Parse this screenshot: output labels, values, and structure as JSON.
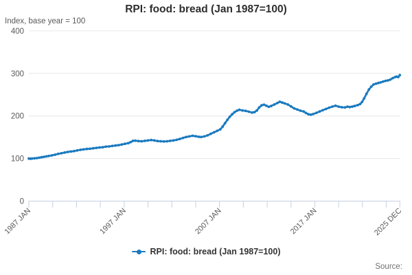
{
  "header": {
    "title": "RPI: food: bread (Jan 1987=100)"
  },
  "source_label": "Source:",
  "colors": {
    "line": "#1a7abf",
    "grid": "#e6e6e6",
    "axis": "#c6d0e2",
    "tick_label": "#595959",
    "title": "#2e2e2e",
    "subtitle": "#595959",
    "source": "#6f6f6f"
  },
  "chart_data": {
    "type": "line",
    "title": "RPI: food: bread (Jan 1987=100)",
    "ylabel": "Index, base year = 100",
    "xlabel": "",
    "ylim": [
      0,
      400
    ],
    "xlim": [
      1987.0,
      2026.0
    ],
    "grid": true,
    "legend_position": "bottom",
    "y_ticks": [
      0,
      100,
      200,
      300,
      400
    ],
    "x_ticks": [
      {
        "year": 1987.0,
        "label": "1987 JAN"
      },
      {
        "year": 1989.5,
        "label": ""
      },
      {
        "year": 1992.0,
        "label": ""
      },
      {
        "year": 1994.5,
        "label": ""
      },
      {
        "year": 1997.0,
        "label": "1997 JAN"
      },
      {
        "year": 1999.5,
        "label": ""
      },
      {
        "year": 2002.0,
        "label": ""
      },
      {
        "year": 2004.5,
        "label": ""
      },
      {
        "year": 2007.0,
        "label": "2007 JAN"
      },
      {
        "year": 2009.5,
        "label": ""
      },
      {
        "year": 2012.0,
        "label": ""
      },
      {
        "year": 2014.5,
        "label": ""
      },
      {
        "year": 2017.0,
        "label": "2017 JAN"
      },
      {
        "year": 2019.5,
        "label": ""
      },
      {
        "year": 2022.0,
        "label": ""
      },
      {
        "year": 2024.5,
        "label": ""
      },
      {
        "year": 2025.92,
        "label": "2025 DEC"
      }
    ],
    "series": [
      {
        "name": "RPI: food: bread (Jan 1987=100)",
        "points": [
          [
            1987.0,
            100
          ],
          [
            1987.17,
            99.5
          ],
          [
            1987.33,
            100
          ],
          [
            1987.58,
            100.5
          ],
          [
            1987.83,
            101
          ],
          [
            1988.08,
            102
          ],
          [
            1988.33,
            103
          ],
          [
            1988.58,
            104
          ],
          [
            1988.83,
            105
          ],
          [
            1989.08,
            106
          ],
          [
            1989.42,
            107.5
          ],
          [
            1989.75,
            109
          ],
          [
            1990.08,
            111
          ],
          [
            1990.42,
            112.5
          ],
          [
            1990.75,
            114
          ],
          [
            1991.08,
            115.5
          ],
          [
            1991.42,
            116.5
          ],
          [
            1991.75,
            117.5
          ],
          [
            1992.08,
            119
          ],
          [
            1992.42,
            120.5
          ],
          [
            1992.75,
            121.5
          ],
          [
            1993.08,
            122.5
          ],
          [
            1993.42,
            123
          ],
          [
            1993.75,
            124
          ],
          [
            1994.08,
            125
          ],
          [
            1994.42,
            126
          ],
          [
            1994.75,
            126.5
          ],
          [
            1995.08,
            128
          ],
          [
            1995.42,
            128.5
          ],
          [
            1995.75,
            129.5
          ],
          [
            1996.08,
            130.5
          ],
          [
            1996.42,
            131.5
          ],
          [
            1996.75,
            133
          ],
          [
            1997.08,
            134.5
          ],
          [
            1997.42,
            136
          ],
          [
            1997.67,
            138.5
          ],
          [
            1997.92,
            141.5
          ],
          [
            1998.17,
            142
          ],
          [
            1998.5,
            141
          ],
          [
            1998.83,
            140.5
          ],
          [
            1999.17,
            141.5
          ],
          [
            1999.5,
            142.5
          ],
          [
            1999.83,
            143.5
          ],
          [
            2000.17,
            142.5
          ],
          [
            2000.5,
            141
          ],
          [
            2000.83,
            140.5
          ],
          [
            2001.17,
            140
          ],
          [
            2001.5,
            140.5
          ],
          [
            2001.83,
            141.5
          ],
          [
            2002.17,
            142.5
          ],
          [
            2002.5,
            144
          ],
          [
            2002.83,
            146
          ],
          [
            2003.17,
            148.5
          ],
          [
            2003.5,
            150.5
          ],
          [
            2003.83,
            152
          ],
          [
            2004.17,
            153.5
          ],
          [
            2004.5,
            152.5
          ],
          [
            2004.83,
            151
          ],
          [
            2005.08,
            150.5
          ],
          [
            2005.42,
            152
          ],
          [
            2005.75,
            154.5
          ],
          [
            2006.08,
            158
          ],
          [
            2006.42,
            161.5
          ],
          [
            2006.75,
            165
          ],
          [
            2007.08,
            168.5
          ],
          [
            2007.33,
            175
          ],
          [
            2007.58,
            183
          ],
          [
            2007.83,
            191
          ],
          [
            2008.08,
            198
          ],
          [
            2008.33,
            204
          ],
          [
            2008.58,
            209
          ],
          [
            2008.83,
            212.5
          ],
          [
            2009.08,
            214.5
          ],
          [
            2009.42,
            213
          ],
          [
            2009.75,
            212
          ],
          [
            2010.08,
            210
          ],
          [
            2010.42,
            208
          ],
          [
            2010.67,
            209
          ],
          [
            2010.92,
            213
          ],
          [
            2011.17,
            220
          ],
          [
            2011.42,
            225
          ],
          [
            2011.67,
            226.5
          ],
          [
            2011.92,
            224
          ],
          [
            2012.17,
            221.5
          ],
          [
            2012.42,
            223.5
          ],
          [
            2012.75,
            227
          ],
          [
            2013.08,
            230.5
          ],
          [
            2013.33,
            233.5
          ],
          [
            2013.58,
            231.5
          ],
          [
            2013.83,
            229.5
          ],
          [
            2014.17,
            227
          ],
          [
            2014.5,
            222.5
          ],
          [
            2014.83,
            218
          ],
          [
            2015.17,
            215
          ],
          [
            2015.5,
            212.5
          ],
          [
            2015.83,
            210.5
          ],
          [
            2016.08,
            207
          ],
          [
            2016.33,
            204
          ],
          [
            2016.58,
            203
          ],
          [
            2016.83,
            204.5
          ],
          [
            2017.17,
            207.5
          ],
          [
            2017.5,
            210.5
          ],
          [
            2017.83,
            213.5
          ],
          [
            2018.17,
            216.5
          ],
          [
            2018.5,
            219.5
          ],
          [
            2018.83,
            222
          ],
          [
            2019.17,
            224
          ],
          [
            2019.5,
            222
          ],
          [
            2019.83,
            220.5
          ],
          [
            2020.17,
            220
          ],
          [
            2020.42,
            222
          ],
          [
            2020.67,
            221
          ],
          [
            2020.92,
            222
          ],
          [
            2021.17,
            223.5
          ],
          [
            2021.5,
            225.5
          ],
          [
            2021.75,
            228
          ],
          [
            2021.96,
            233
          ],
          [
            2022.17,
            241
          ],
          [
            2022.42,
            252
          ],
          [
            2022.67,
            262
          ],
          [
            2022.92,
            269
          ],
          [
            2023.17,
            274
          ],
          [
            2023.42,
            276
          ],
          [
            2023.67,
            277.5
          ],
          [
            2023.92,
            279
          ],
          [
            2024.17,
            281
          ],
          [
            2024.42,
            282.5
          ],
          [
            2024.67,
            283.5
          ],
          [
            2024.92,
            285.5
          ],
          [
            2025.17,
            289
          ],
          [
            2025.42,
            291.5
          ],
          [
            2025.58,
            292.5
          ],
          [
            2025.75,
            291.5
          ],
          [
            2025.92,
            296
          ]
        ]
      }
    ]
  }
}
